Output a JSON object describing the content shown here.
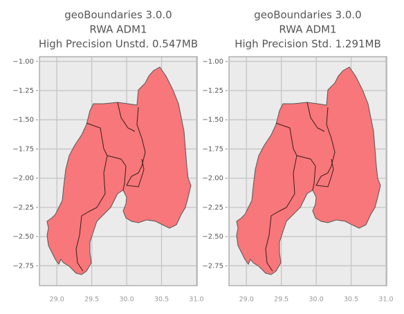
{
  "chart_data": [
    {
      "type": "map",
      "title": [
        "geoBoundaries 3.0.0",
        "RWA ADM1",
        "High Precision Unstd. 0.547MB"
      ],
      "xlim": [
        28.75,
        31.01
      ],
      "ylim": [
        -2.92,
        -0.96
      ],
      "xticks": [
        {
          "value": 29,
          "label": "29.0"
        },
        {
          "value": 29.5,
          "label": "29.5"
        },
        {
          "value": 30,
          "label": "30.0"
        },
        {
          "value": 30.5,
          "label": "30.5"
        },
        {
          "value": 31,
          "label": "31.0"
        }
      ],
      "yticks": [
        {
          "value": -1,
          "label": "−1.00"
        },
        {
          "value": -1.25,
          "label": "−1.25"
        },
        {
          "value": -1.5,
          "label": "−1.50"
        },
        {
          "value": -1.75,
          "label": "−1.75"
        },
        {
          "value": -2,
          "label": "−2.00"
        },
        {
          "value": -2.25,
          "label": "−2.25"
        },
        {
          "value": -2.5,
          "label": "−2.50"
        },
        {
          "value": -2.75,
          "label": "−2.75"
        }
      ],
      "color": "#f7777a",
      "grid": true
    },
    {
      "type": "map",
      "title": [
        "geoBoundaries 3.0.0",
        "RWA ADM1",
        "High Precision Std. 1.291MB"
      ],
      "xlim": [
        28.75,
        31.01
      ],
      "ylim": [
        -2.92,
        -0.96
      ],
      "xticks": [
        {
          "value": 29,
          "label": "29.0"
        },
        {
          "value": 29.5,
          "label": "29.5"
        },
        {
          "value": 30,
          "label": "30.0"
        },
        {
          "value": 30.5,
          "label": "30.5"
        },
        {
          "value": 31,
          "label": "31.0"
        }
      ],
      "yticks": [
        {
          "value": -1,
          "label": "−1.00"
        },
        {
          "value": -1.25,
          "label": "−1.25"
        },
        {
          "value": -1.5,
          "label": "−1.50"
        },
        {
          "value": -1.75,
          "label": "−1.75"
        },
        {
          "value": -2,
          "label": "−2.00"
        },
        {
          "value": -2.25,
          "label": "−2.25"
        },
        {
          "value": -2.5,
          "label": "−2.50"
        },
        {
          "value": -2.75,
          "label": "−2.75"
        }
      ],
      "color": "#f7777a",
      "grid": true
    }
  ]
}
